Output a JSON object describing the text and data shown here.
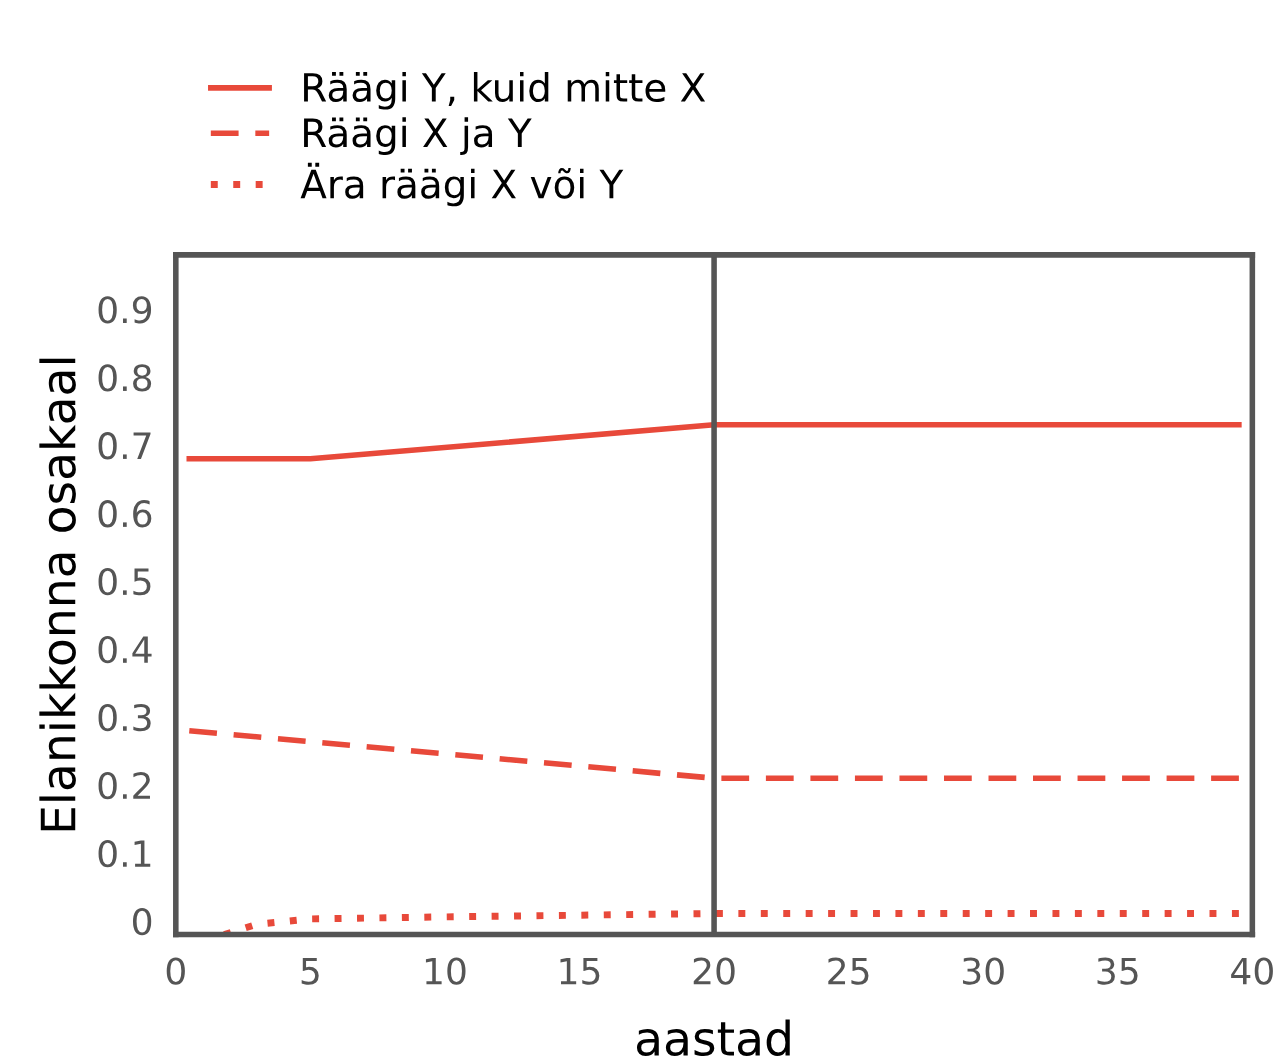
{
  "chart_data": {
    "type": "line",
    "xlabel": "aastad",
    "ylabel": "Elanikkonna osakaal",
    "xlim": [
      0,
      40
    ],
    "xticks": [
      0,
      5,
      10,
      15,
      20,
      25,
      30,
      35,
      40
    ],
    "ylim": [
      -0.02,
      0.98
    ],
    "yticks": [
      0,
      0.1,
      0.2,
      0.3,
      0.4,
      0.5,
      0.6,
      0.7,
      0.8,
      0.9
    ],
    "grid": false,
    "legend": "top left",
    "marker": "none",
    "ref_lines": [
      {
        "axis": "x",
        "value": 20,
        "color": "#555555",
        "line_style": "solid"
      }
    ],
    "series": [
      {
        "name": "Räägi Y, kuid mitte X",
        "color": "#e8493a",
        "line_style": "solid",
        "x": [
          0.5,
          5,
          20,
          39.5
        ],
        "values": [
          0.68,
          0.68,
          0.73,
          0.73
        ]
      },
      {
        "name": "Räägi X ja Y",
        "color": "#e8493a",
        "line_style": "dashed",
        "x": [
          0.5,
          20,
          39.5
        ],
        "values": [
          0.28,
          0.21,
          0.21
        ]
      },
      {
        "name": "Ära räägi X või Y",
        "color": "#e8493a",
        "line_style": "dotted",
        "x": [
          1.8,
          3,
          5,
          10,
          20,
          39.5
        ],
        "values": [
          -0.02,
          -0.005,
          0.003,
          0.006,
          0.011,
          0.011
        ]
      }
    ]
  }
}
